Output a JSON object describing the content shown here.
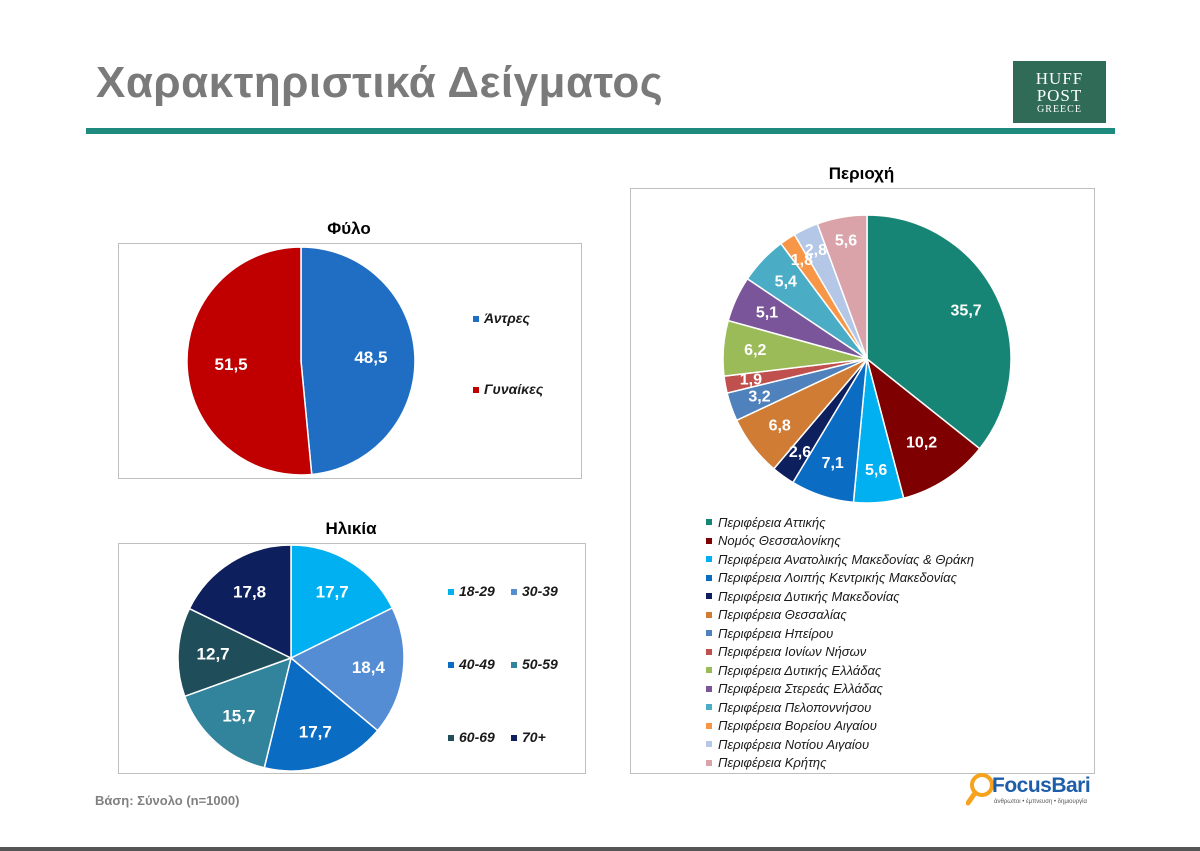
{
  "page": {
    "title": "Χαρακτηριστικά Δείγματος",
    "footnote": "Βάση: Σύνολο (n=1000)",
    "brand_logo": {
      "line1": "HUFF",
      "line2": "POST",
      "line3": "GREECE"
    },
    "research_logo": {
      "name": "FocusBari",
      "tagline": "άνθρωποι • έμπνευση • δημιουργία"
    }
  },
  "chart_data": [
    {
      "type": "pie",
      "title": "Φύλο",
      "categories": [
        "Άντρες",
        "Γυναίκες"
      ],
      "values": [
        48.5,
        51.5
      ],
      "labels": [
        "48,5",
        "51,5"
      ],
      "colors": [
        "#1f6ec3",
        "#c00000"
      ],
      "legend_position": "right"
    },
    {
      "type": "pie",
      "title": "Ηλικία",
      "categories": [
        "18-29",
        "30-39",
        "40-49",
        "50-59",
        "60-69",
        "70+"
      ],
      "values": [
        17.7,
        18.4,
        17.7,
        15.7,
        12.7,
        17.8
      ],
      "labels": [
        "17,7",
        "18,4",
        "17,7",
        "15,7",
        "12,7",
        "17,8"
      ],
      "colors": [
        "#00b0f0",
        "#548dd4",
        "#0b6cc4",
        "#31849b",
        "#1f4e5a",
        "#0d1f5c"
      ],
      "legend_position": "right"
    },
    {
      "type": "pie",
      "title": "Περιοχή",
      "categories": [
        "Περιφέρεια Αττικής",
        "Νομός Θεσσαλονίκης",
        "Περιφέρεια Ανατολικής Μακεδονίας & Θράκη",
        "Περιφέρεια Λοιπής Κεντρικής Μακεδονίας",
        "Περιφέρεια Δυτικής Μακεδονίας",
        "Περιφέρεια Θεσσαλίας",
        "Περιφέρεια Ηπείρου",
        "Περιφέρεια Ιονίων Νήσων",
        "Περιφέρεια Δυτικής Ελλάδας",
        "Περιφέρεια Στερεάς Ελλάδας",
        "Περιφέρεια Πελοποννήσου",
        "Περιφέρεια Βορείου Αιγαίου",
        "Περιφέρεια Νοτίου Αιγαίου",
        "Περιφέρεια Κρήτης"
      ],
      "values": [
        35.7,
        10.2,
        5.6,
        7.1,
        2.6,
        6.8,
        3.2,
        1.9,
        6.2,
        5.1,
        5.4,
        1.8,
        2.8,
        5.6
      ],
      "labels": [
        "35,7",
        "10,2",
        "5,6",
        "7,1",
        "2,6",
        "6,8",
        "3,2",
        "1,9",
        "6,2",
        "5,1",
        "5,4",
        "1,8",
        "2,8",
        "5,6"
      ],
      "colors": [
        "#168575",
        "#7f0000",
        "#00b0f0",
        "#0b6cc4",
        "#0d1f5c",
        "#d07c35",
        "#4f81bd",
        "#c0504d",
        "#9bbb59",
        "#7a5599",
        "#4bacc6",
        "#f79646",
        "#b4c7e7",
        "#d9a3a9"
      ],
      "legend_position": "bottom"
    }
  ]
}
